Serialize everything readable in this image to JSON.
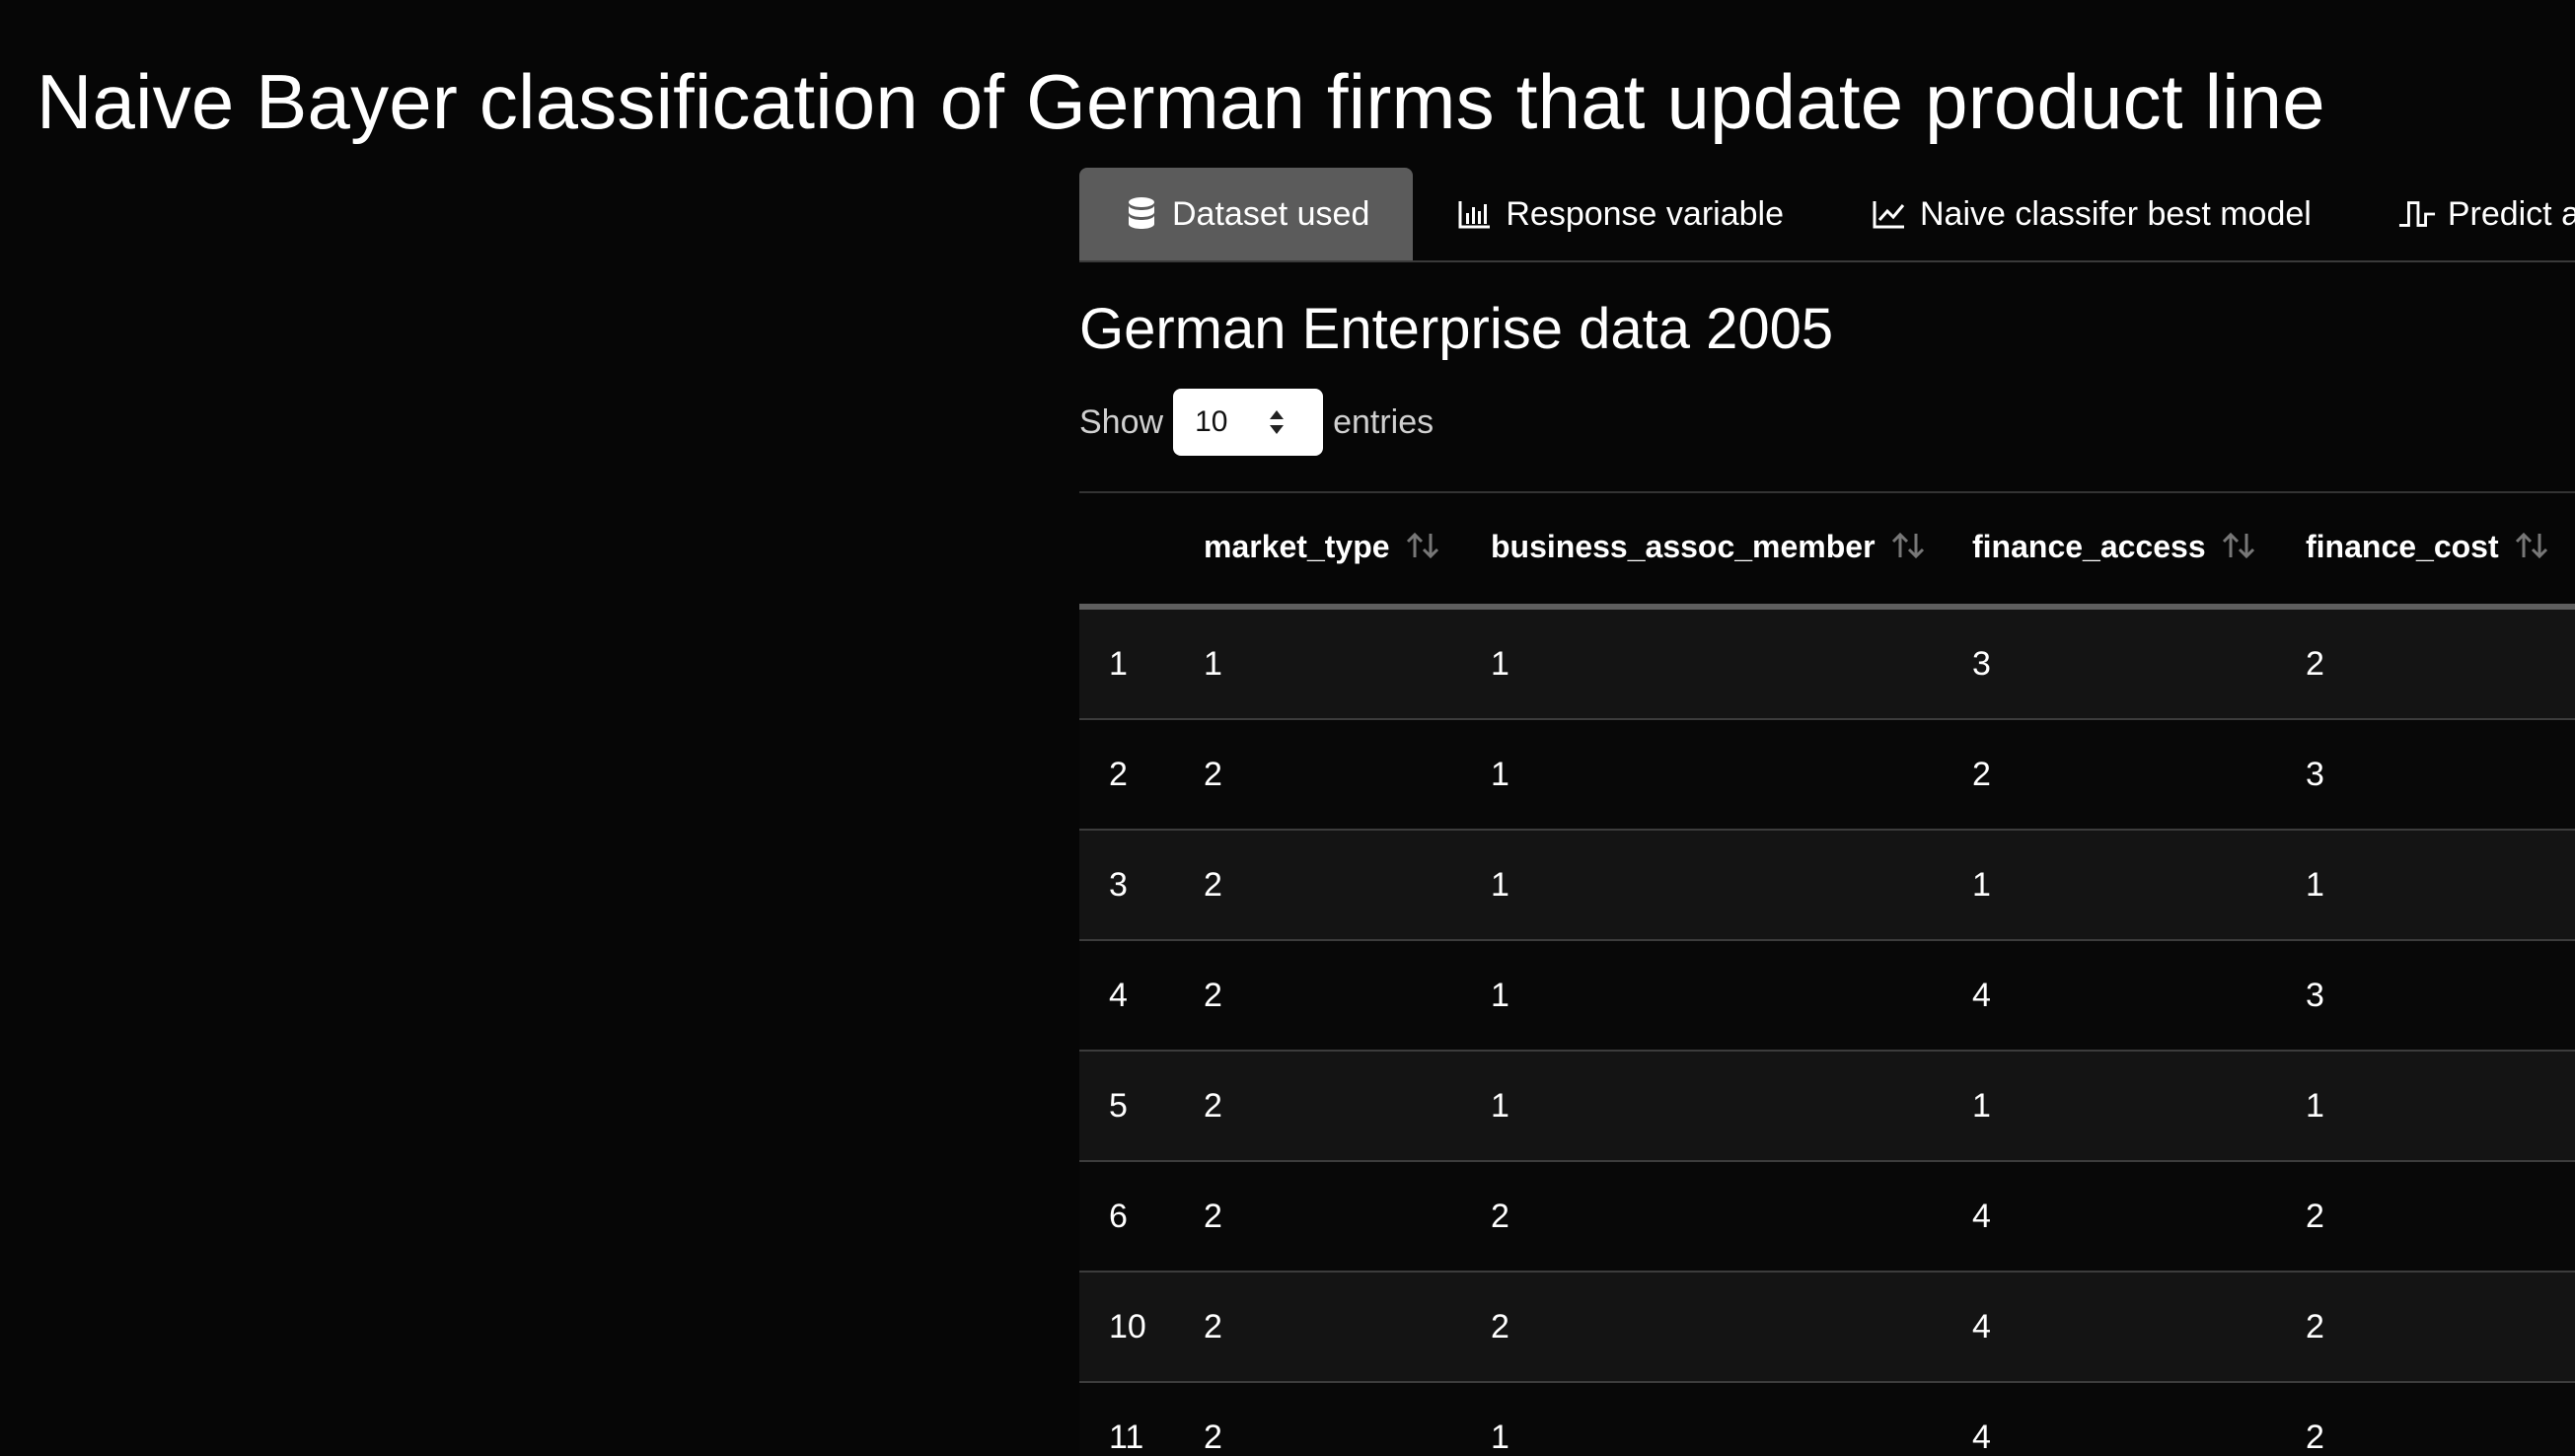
{
  "page": {
    "title": "Naive Bayer classification of German firms that update product line"
  },
  "tabs": [
    {
      "label": "Dataset used",
      "icon": "database-icon",
      "active": true
    },
    {
      "label": "Response variable",
      "icon": "bar-chart-icon",
      "active": false
    },
    {
      "label": "Naive classifer best model",
      "icon": "line-chart-icon",
      "active": false
    },
    {
      "label": "Predict ac",
      "icon": "wave-square-icon",
      "active": false
    }
  ],
  "section": {
    "title": "German Enterprise data 2005"
  },
  "length_control": {
    "prefix": "Show",
    "value": "10",
    "suffix": "entries"
  },
  "table": {
    "columns": [
      "",
      "market_type",
      "business_assoc_member",
      "finance_access",
      "finance_cost"
    ],
    "rows": [
      [
        "1",
        "1",
        "1",
        "3",
        "2"
      ],
      [
        "2",
        "2",
        "1",
        "2",
        "3"
      ],
      [
        "3",
        "2",
        "1",
        "1",
        "1"
      ],
      [
        "4",
        "2",
        "1",
        "4",
        "3"
      ],
      [
        "5",
        "2",
        "1",
        "1",
        "1"
      ],
      [
        "6",
        "2",
        "2",
        "4",
        "2"
      ],
      [
        "10",
        "2",
        "2",
        "4",
        "2"
      ],
      [
        "11",
        "2",
        "1",
        "4",
        "2"
      ]
    ]
  },
  "colors": {
    "background": "#060606",
    "active_tab": "#5b5b5b",
    "row_odd": "#141414",
    "row_even": "#080808"
  }
}
